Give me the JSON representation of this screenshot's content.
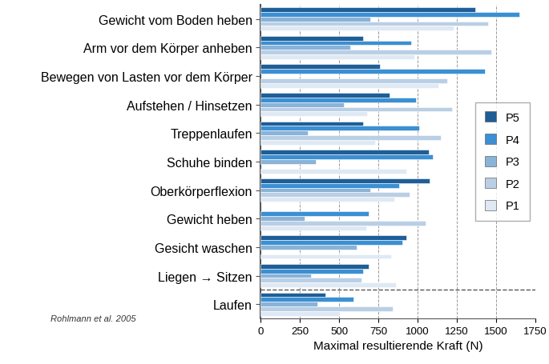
{
  "chart_data": {
    "type": "bar",
    "orientation": "horizontal",
    "categories": [
      "Gewicht vom Boden heben",
      "Arm vor dem Körper anheben",
      "Bewegen von Lasten vor dem Körper",
      "Aufstehen / Hinsetzen",
      "Treppenlaufen",
      "Schuhe binden",
      "Oberkörperflexion",
      "Gewicht heben",
      "Gesicht waschen",
      "Liegen → Sitzen",
      "Laufen"
    ],
    "series": [
      {
        "name": "P5",
        "color": "#1f5e96",
        "values": [
          1365,
          650,
          760,
          820,
          650,
          1070,
          1075,
          null,
          930,
          690,
          410
        ]
      },
      {
        "name": "P4",
        "color": "#3b8fd3",
        "values": [
          1650,
          960,
          1430,
          990,
          1010,
          1095,
          880,
          690,
          900,
          650,
          590
        ]
      },
      {
        "name": "P3",
        "color": "#8ab3d8",
        "values": [
          700,
          570,
          null,
          530,
          300,
          350,
          700,
          280,
          610,
          320,
          360
        ]
      },
      {
        "name": "P2",
        "color": "#b9cfe5",
        "values": [
          1450,
          1470,
          1190,
          1220,
          1150,
          null,
          950,
          1050,
          null,
          640,
          840
        ]
      },
      {
        "name": "P1",
        "color": "#dfe9f4",
        "values": [
          1230,
          980,
          1130,
          680,
          730,
          930,
          850,
          670,
          830,
          860,
          500
        ]
      }
    ],
    "xlabel": "Maximal resultierende Kraft (N)",
    "xlim": [
      0,
      1750
    ],
    "xticks": [
      0,
      250,
      500,
      750,
      1000,
      1250,
      1500,
      1750
    ],
    "grid": true,
    "legend": "center right",
    "annotations": [
      "Rohlmann et al. 2005"
    ]
  }
}
